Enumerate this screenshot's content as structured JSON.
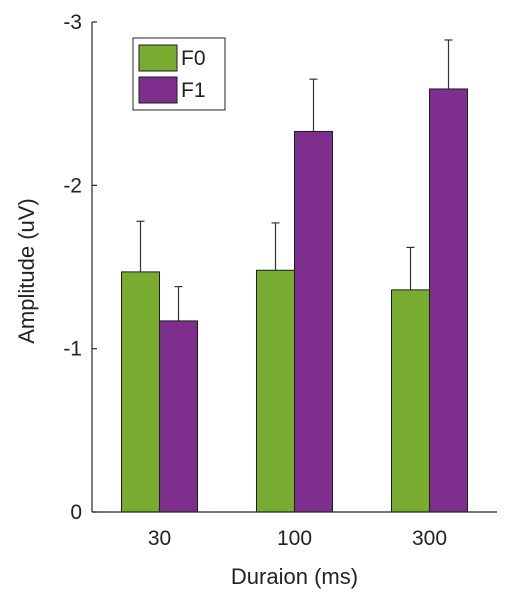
{
  "chart_data": {
    "type": "bar",
    "categories": [
      "30",
      "100",
      "300"
    ],
    "series": [
      {
        "name": "F0",
        "color": "#77ac30",
        "values": [
          -1.47,
          -1.48,
          -1.36
        ],
        "errors": [
          0.31,
          0.29,
          0.26
        ]
      },
      {
        "name": "F1",
        "color": "#7e2f8e",
        "values": [
          -1.17,
          -2.33,
          -2.59
        ],
        "errors": [
          0.21,
          0.32,
          0.3
        ]
      }
    ],
    "title": "",
    "xlabel": "Duraion (ms)",
    "ylabel": "Amplitude (uV)",
    "ylim": [
      0,
      -3
    ],
    "y_direction": "reversed",
    "yticks": [
      "0",
      "-1",
      "-2",
      "-3"
    ],
    "ytick_values": [
      0,
      -1,
      -2,
      -3
    ],
    "grid": false,
    "legend_position": "top-left",
    "has_error_bars": true
  }
}
